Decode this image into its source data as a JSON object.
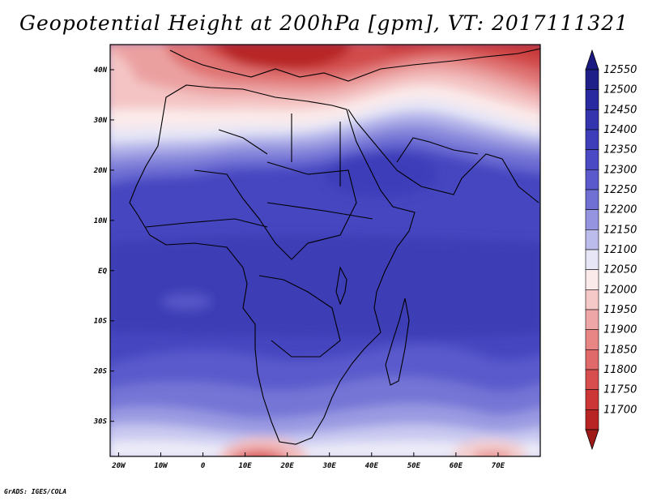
{
  "title": "Geopotential Height at 200hPa [gpm], VT: 2017111321",
  "credit": "GrADS: IGES/COLA",
  "map": {
    "lon_range": [
      -22,
      80
    ],
    "lat_range": [
      -37,
      45
    ],
    "lon_ticks": [
      {
        "value": -20,
        "label": "20W"
      },
      {
        "value": -10,
        "label": "10W"
      },
      {
        "value": 0,
        "label": "0"
      },
      {
        "value": 10,
        "label": "10E"
      },
      {
        "value": 20,
        "label": "20E"
      },
      {
        "value": 30,
        "label": "30E"
      },
      {
        "value": 40,
        "label": "40E"
      },
      {
        "value": 50,
        "label": "50E"
      },
      {
        "value": 60,
        "label": "60E"
      },
      {
        "value": 70,
        "label": "70E"
      }
    ],
    "lat_ticks": [
      {
        "value": 40,
        "label": "40N"
      },
      {
        "value": 30,
        "label": "30N"
      },
      {
        "value": 20,
        "label": "20N"
      },
      {
        "value": 10,
        "label": "10N"
      },
      {
        "value": 0,
        "label": "EQ"
      },
      {
        "value": -10,
        "label": "10S"
      },
      {
        "value": -20,
        "label": "20S"
      },
      {
        "value": -30,
        "label": "30S"
      }
    ]
  },
  "colorbar": {
    "levels": [
      {
        "label": "12550",
        "color": "#1f1f8a"
      },
      {
        "label": "12500",
        "color": "#2a2aa0"
      },
      {
        "label": "12450",
        "color": "#3434ae"
      },
      {
        "label": "12400",
        "color": "#3e3eba"
      },
      {
        "label": "12350",
        "color": "#4a4ac4"
      },
      {
        "label": "12300",
        "color": "#5a5acc"
      },
      {
        "label": "12250",
        "color": "#7070d4"
      },
      {
        "label": "12200",
        "color": "#9494e0"
      },
      {
        "label": "12150",
        "color": "#bcbcec"
      },
      {
        "label": "12100",
        "color": "#e6e6f6"
      },
      {
        "label": "12050",
        "color": "#fbeaea"
      },
      {
        "label": "12000",
        "color": "#f6c9c9"
      },
      {
        "label": "11950",
        "color": "#efa6a6"
      },
      {
        "label": "11900",
        "color": "#e88686"
      },
      {
        "label": "11850",
        "color": "#e06a6a"
      },
      {
        "label": "11800",
        "color": "#d84e4e"
      },
      {
        "label": "11750",
        "color": "#cc3636"
      },
      {
        "label": "11700",
        "color": "#b82424"
      }
    ],
    "over_color": "#1a1a80",
    "under_color": "#a01a1a"
  }
}
